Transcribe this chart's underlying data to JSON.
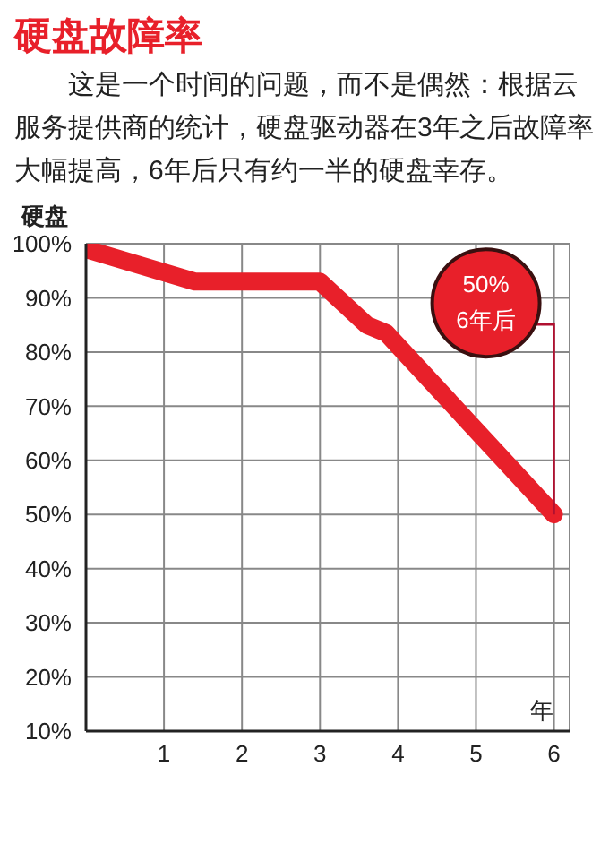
{
  "chart_data": {
    "type": "line",
    "title": "硬盘故障率",
    "subtitle": "这是一个时间的问题，而不是偶然：根据云服务提供商的统计，硬盘驱动器在3年之后故障率大幅提高，6年后只有约一半的硬盘幸存。",
    "xlabel": "年",
    "ylabel": "硬盘",
    "x": [
      0,
      1.4,
      3,
      3.6,
      3.85,
      6
    ],
    "series": [
      {
        "color": "#e8202a",
        "values": [
          99,
          93,
          93,
          85,
          83.5,
          50
        ]
      }
    ],
    "xlim": [
      0,
      6.2
    ],
    "xticks": [
      1,
      2,
      3,
      4,
      5,
      6
    ],
    "ylim": [
      10,
      100
    ],
    "yticks": [
      {
        "value": 10,
        "label": "10%"
      },
      {
        "value": 20,
        "label": "20%"
      },
      {
        "value": 30,
        "label": "30%"
      },
      {
        "value": 40,
        "label": "40%"
      },
      {
        "value": 50,
        "label": "50%"
      },
      {
        "value": 60,
        "label": "60%"
      },
      {
        "value": 70,
        "label": "70%"
      },
      {
        "value": 80,
        "label": "80%"
      },
      {
        "value": 90,
        "label": "90%"
      },
      {
        "value": 100,
        "label": "100%"
      }
    ],
    "grid": true,
    "marker": "none",
    "line_style": "solid",
    "annotations": [
      {
        "text": "50%\n6年后",
        "x": 6,
        "y": 50
      }
    ]
  }
}
